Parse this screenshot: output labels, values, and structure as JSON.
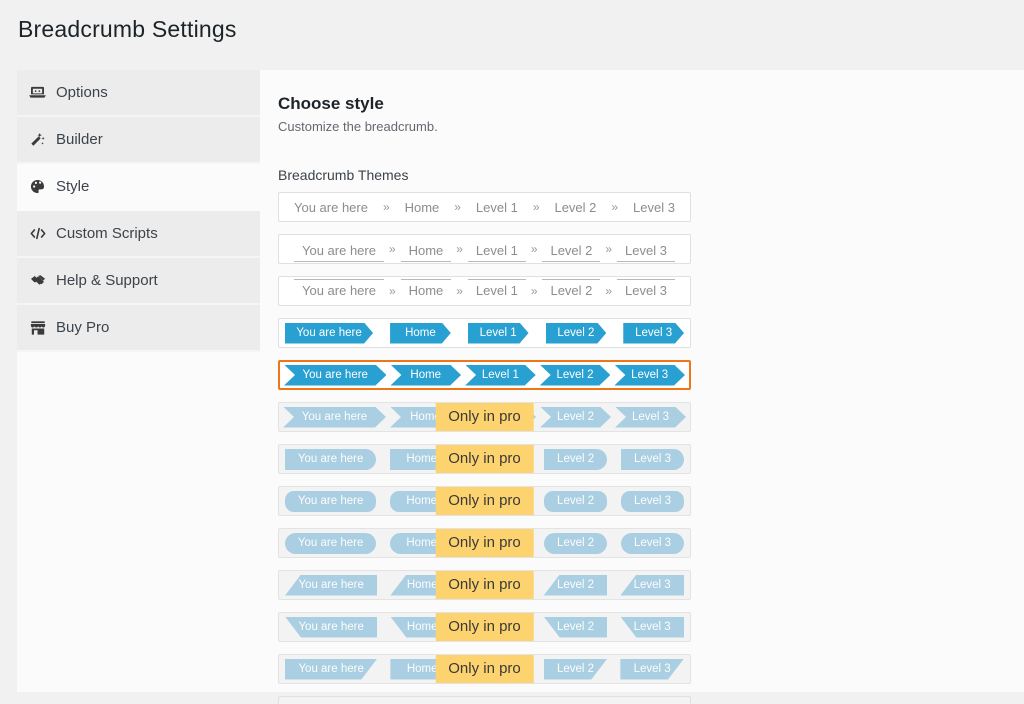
{
  "page": {
    "title": "Breadcrumb Settings"
  },
  "sidebar": {
    "items": [
      {
        "label": "Options",
        "icon": "laptop-icon",
        "active": false
      },
      {
        "label": "Builder",
        "icon": "magic-wand-icon",
        "active": false
      },
      {
        "label": "Style",
        "icon": "palette-icon",
        "active": true
      },
      {
        "label": "Custom Scripts",
        "icon": "code-icon",
        "active": false
      },
      {
        "label": "Help & Support",
        "icon": "handshake-icon",
        "active": false
      },
      {
        "label": "Buy Pro",
        "icon": "store-icon",
        "active": false
      }
    ]
  },
  "main": {
    "heading": "Choose style",
    "subheading": "Customize the breadcrumb.",
    "themes_label": "Breadcrumb Themes",
    "crumbs": [
      "You are here",
      "Home",
      "Level 1",
      "Level 2",
      "Level 3"
    ],
    "separator": "»",
    "pro_badge": "Only in pro",
    "themes": [
      {
        "name": "plain-text",
        "style": "plain",
        "pro": false,
        "selected": false
      },
      {
        "name": "underline",
        "style": "underline",
        "pro": false,
        "selected": false
      },
      {
        "name": "overline",
        "style": "overline",
        "pro": false,
        "selected": false
      },
      {
        "name": "arrow",
        "style": "arrow",
        "pro": false,
        "selected": false
      },
      {
        "name": "chevron",
        "style": "chevron",
        "pro": false,
        "selected": true
      },
      {
        "name": "chevron-pro",
        "style": "chevron",
        "pro": true,
        "selected": false
      },
      {
        "name": "rounded-right-pro",
        "style": "roundright",
        "pro": true,
        "selected": false
      },
      {
        "name": "pill-pro",
        "style": "pill",
        "pro": true,
        "selected": false
      },
      {
        "name": "pill-large-pro",
        "style": "pill2",
        "pro": true,
        "selected": false
      },
      {
        "name": "slant-top-left-pro",
        "style": "slant-tl",
        "pro": true,
        "selected": false
      },
      {
        "name": "slant-bottom-left-pro",
        "style": "slant-bl",
        "pro": true,
        "selected": false
      },
      {
        "name": "slant-right-pro",
        "style": "slant-br",
        "pro": true,
        "selected": false
      }
    ]
  },
  "colors": {
    "accent_orange": "#ee7618",
    "crumb_blue": "#29a0d2",
    "pro_blue": "#abcfe2",
    "badge_yellow": "#fcd36e",
    "page_background": "#f1f1f1"
  }
}
